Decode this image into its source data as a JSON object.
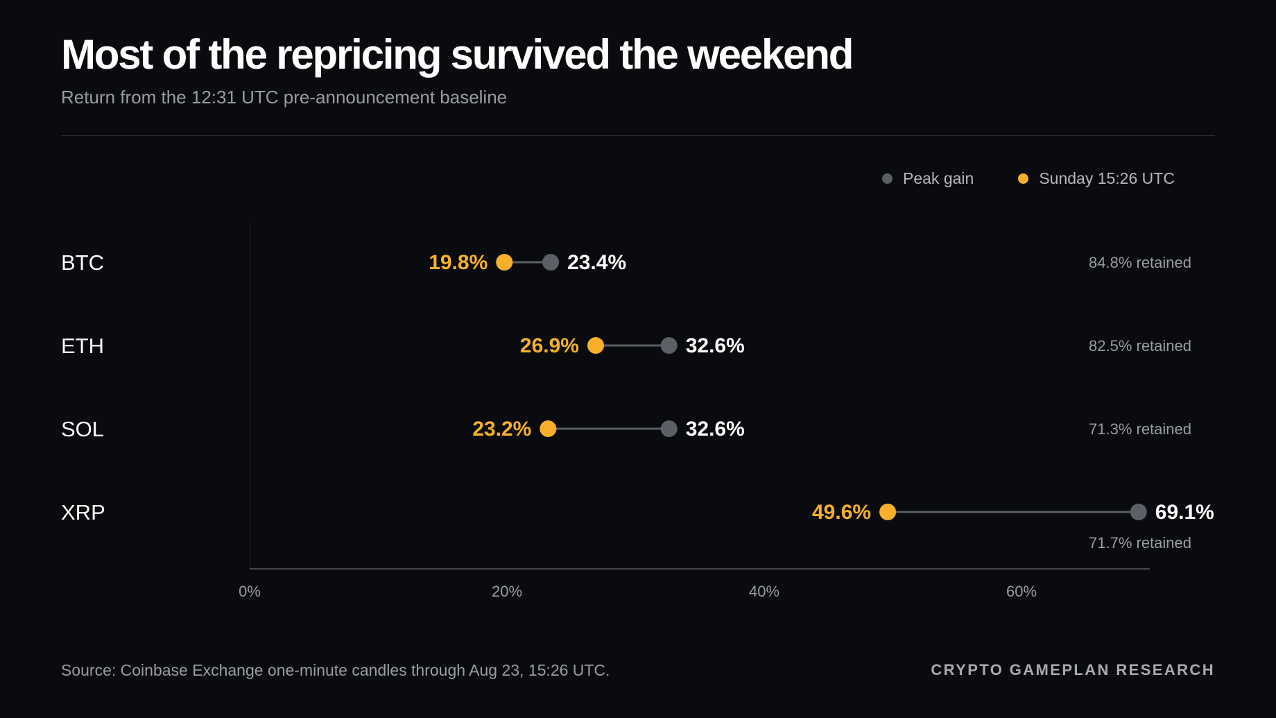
{
  "title": "Most of the repricing survived the weekend",
  "subtitle": "Return from the 12:31 UTC pre-announcement baseline",
  "legend": {
    "peak_label": "Peak gain",
    "sunday_label": "Sunday 15:26 UTC"
  },
  "colors": {
    "background": "#0a0b0e",
    "peak": "#5d5f66",
    "sunday": "#f8b02b",
    "text_primary": "#ffffff",
    "text_muted": "#9a9ca3"
  },
  "footer": {
    "source": "Source: Coinbase Exchange one-minute candles through Aug 23, 15:26 UTC.",
    "brand": "CRYPTO GAMEPLAN RESEARCH"
  },
  "chart_data": {
    "type": "dumbbell",
    "xlim": [
      0,
      70
    ],
    "x_ticks": [
      0,
      20,
      40,
      60
    ],
    "x_tick_labels": [
      "0%",
      "20%",
      "40%",
      "60%"
    ],
    "series": [
      {
        "name": "Peak gain",
        "color": "#5d5f66"
      },
      {
        "name": "Sunday 15:26 UTC",
        "color": "#f8b02b"
      }
    ],
    "rows": [
      {
        "asset": "BTC",
        "sunday": 19.8,
        "sunday_label": "19.8%",
        "peak": 23.4,
        "peak_label": "23.4%",
        "retained": "84.8% retained"
      },
      {
        "asset": "ETH",
        "sunday": 26.9,
        "sunday_label": "26.9%",
        "peak": 32.6,
        "peak_label": "32.6%",
        "retained": "82.5% retained"
      },
      {
        "asset": "SOL",
        "sunday": 23.2,
        "sunday_label": "23.2%",
        "peak": 32.6,
        "peak_label": "32.6%",
        "retained": "71.3% retained"
      },
      {
        "asset": "XRP",
        "sunday": 49.6,
        "sunday_label": "49.6%",
        "peak": 69.1,
        "peak_label": "69.1%",
        "retained": "71.7% retained"
      }
    ]
  }
}
